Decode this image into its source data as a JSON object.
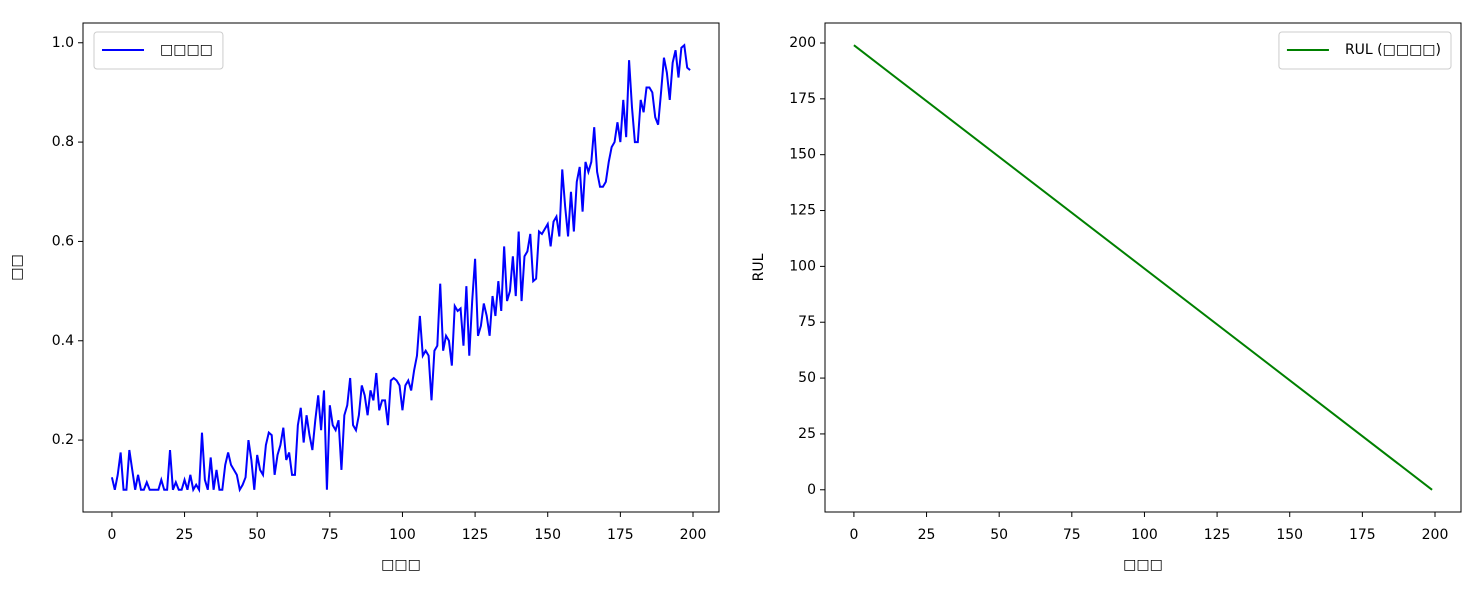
{
  "chart_data": [
    {
      "type": "line",
      "xlabel": "□□□",
      "ylabel": "□□",
      "legend": "upper-left",
      "grid": false,
      "xlim": [
        -9.95,
        208.95
      ],
      "ylim": [
        0.0552,
        1.0398
      ],
      "xticks": [
        0,
        25,
        50,
        75,
        100,
        125,
        150,
        175,
        200
      ],
      "yticks": [
        0.2,
        0.4,
        0.6,
        0.8,
        {
          "value": 1,
          "label": "1.0"
        }
      ],
      "x": [
        0,
        1,
        2,
        3,
        4,
        5,
        6,
        7,
        8,
        9,
        10,
        11,
        12,
        13,
        14,
        15,
        16,
        17,
        18,
        19,
        20,
        21,
        22,
        23,
        24,
        25,
        26,
        27,
        28,
        29,
        30,
        31,
        32,
        33,
        34,
        35,
        36,
        37,
        38,
        39,
        40,
        41,
        42,
        43,
        44,
        45,
        46,
        47,
        48,
        49,
        50,
        51,
        52,
        53,
        54,
        55,
        56,
        57,
        58,
        59,
        60,
        61,
        62,
        63,
        64,
        65,
        66,
        67,
        68,
        69,
        70,
        71,
        72,
        73,
        74,
        75,
        76,
        77,
        78,
        79,
        80,
        81,
        82,
        83,
        84,
        85,
        86,
        87,
        88,
        89,
        90,
        91,
        92,
        93,
        94,
        95,
        96,
        97,
        98,
        99,
        100,
        101,
        102,
        103,
        104,
        105,
        106,
        107,
        108,
        109,
        110,
        111,
        112,
        113,
        114,
        115,
        116,
        117,
        118,
        119,
        120,
        121,
        122,
        123,
        124,
        125,
        126,
        127,
        128,
        129,
        130,
        131,
        132,
        133,
        134,
        135,
        136,
        137,
        138,
        139,
        140,
        141,
        142,
        143,
        144,
        145,
        146,
        147,
        148,
        149,
        150,
        151,
        152,
        153,
        154,
        155,
        156,
        157,
        158,
        159,
        160,
        161,
        162,
        163,
        164,
        165,
        166,
        167,
        168,
        169,
        170,
        171,
        172,
        173,
        174,
        175,
        176,
        177,
        178,
        179,
        180,
        181,
        182,
        183,
        184,
        185,
        186,
        187,
        188,
        189,
        190,
        191,
        192,
        193,
        194,
        195,
        196,
        197,
        198,
        199
      ],
      "series": [
        {
          "name": "□□□□",
          "color": "#0000ff",
          "values": [
            0.125,
            0.1,
            0.13,
            0.175,
            0.1,
            0.1,
            0.18,
            0.14,
            0.1,
            0.13,
            0.1,
            0.1,
            0.115,
            0.1,
            0.1,
            0.1,
            0.1,
            0.12,
            0.1,
            0.1,
            0.18,
            0.1,
            0.115,
            0.1,
            0.1,
            0.12,
            0.1,
            0.13,
            0.1,
            0.11,
            0.1,
            0.215,
            0.12,
            0.1,
            0.165,
            0.1,
            0.14,
            0.1,
            0.1,
            0.15,
            0.175,
            0.15,
            0.14,
            0.13,
            0.1,
            0.11,
            0.125,
            0.2,
            0.16,
            0.1,
            0.17,
            0.14,
            0.13,
            0.19,
            0.215,
            0.21,
            0.13,
            0.17,
            0.19,
            0.225,
            0.16,
            0.175,
            0.13,
            0.13,
            0.23,
            0.265,
            0.195,
            0.25,
            0.21,
            0.18,
            0.24,
            0.29,
            0.22,
            0.3,
            0.1,
            0.27,
            0.23,
            0.22,
            0.24,
            0.14,
            0.25,
            0.27,
            0.325,
            0.23,
            0.22,
            0.25,
            0.31,
            0.29,
            0.25,
            0.3,
            0.28,
            0.335,
            0.26,
            0.28,
            0.28,
            0.23,
            0.32,
            0.325,
            0.32,
            0.31,
            0.26,
            0.31,
            0.32,
            0.3,
            0.34,
            0.37,
            0.45,
            0.37,
            0.38,
            0.37,
            0.28,
            0.38,
            0.39,
            0.515,
            0.38,
            0.41,
            0.4,
            0.35,
            0.47,
            0.46,
            0.465,
            0.39,
            0.51,
            0.37,
            0.48,
            0.565,
            0.41,
            0.43,
            0.475,
            0.45,
            0.41,
            0.49,
            0.45,
            0.52,
            0.46,
            0.59,
            0.48,
            0.5,
            0.57,
            0.49,
            0.62,
            0.48,
            0.57,
            0.58,
            0.615,
            0.52,
            0.525,
            0.62,
            0.615,
            0.625,
            0.635,
            0.59,
            0.64,
            0.65,
            0.61,
            0.745,
            0.67,
            0.61,
            0.7,
            0.62,
            0.72,
            0.75,
            0.66,
            0.76,
            0.74,
            0.76,
            0.83,
            0.74,
            0.71,
            0.71,
            0.72,
            0.76,
            0.79,
            0.8,
            0.84,
            0.8,
            0.885,
            0.81,
            0.965,
            0.87,
            0.8,
            0.8,
            0.885,
            0.86,
            0.91,
            0.91,
            0.9,
            0.85,
            0.835,
            0.9,
            0.97,
            0.94,
            0.885,
            0.96,
            0.985,
            0.93,
            0.99,
            0.995,
            0.95,
            0.945
          ]
        }
      ]
    },
    {
      "type": "line",
      "xlabel": "□□□",
      "ylabel": "RUL",
      "legend": "upper-right",
      "grid": false,
      "xlim": [
        -9.95,
        208.95
      ],
      "ylim": [
        -9.95,
        208.95
      ],
      "xticks": [
        0,
        25,
        50,
        75,
        100,
        125,
        150,
        175,
        200
      ],
      "yticks": [
        0,
        25,
        50,
        75,
        100,
        125,
        150,
        175,
        200
      ],
      "x": [
        0,
        199
      ],
      "series": [
        {
          "name": "RUL (□□□□)",
          "color": "#008000",
          "values": [
            199,
            0
          ]
        }
      ]
    }
  ]
}
